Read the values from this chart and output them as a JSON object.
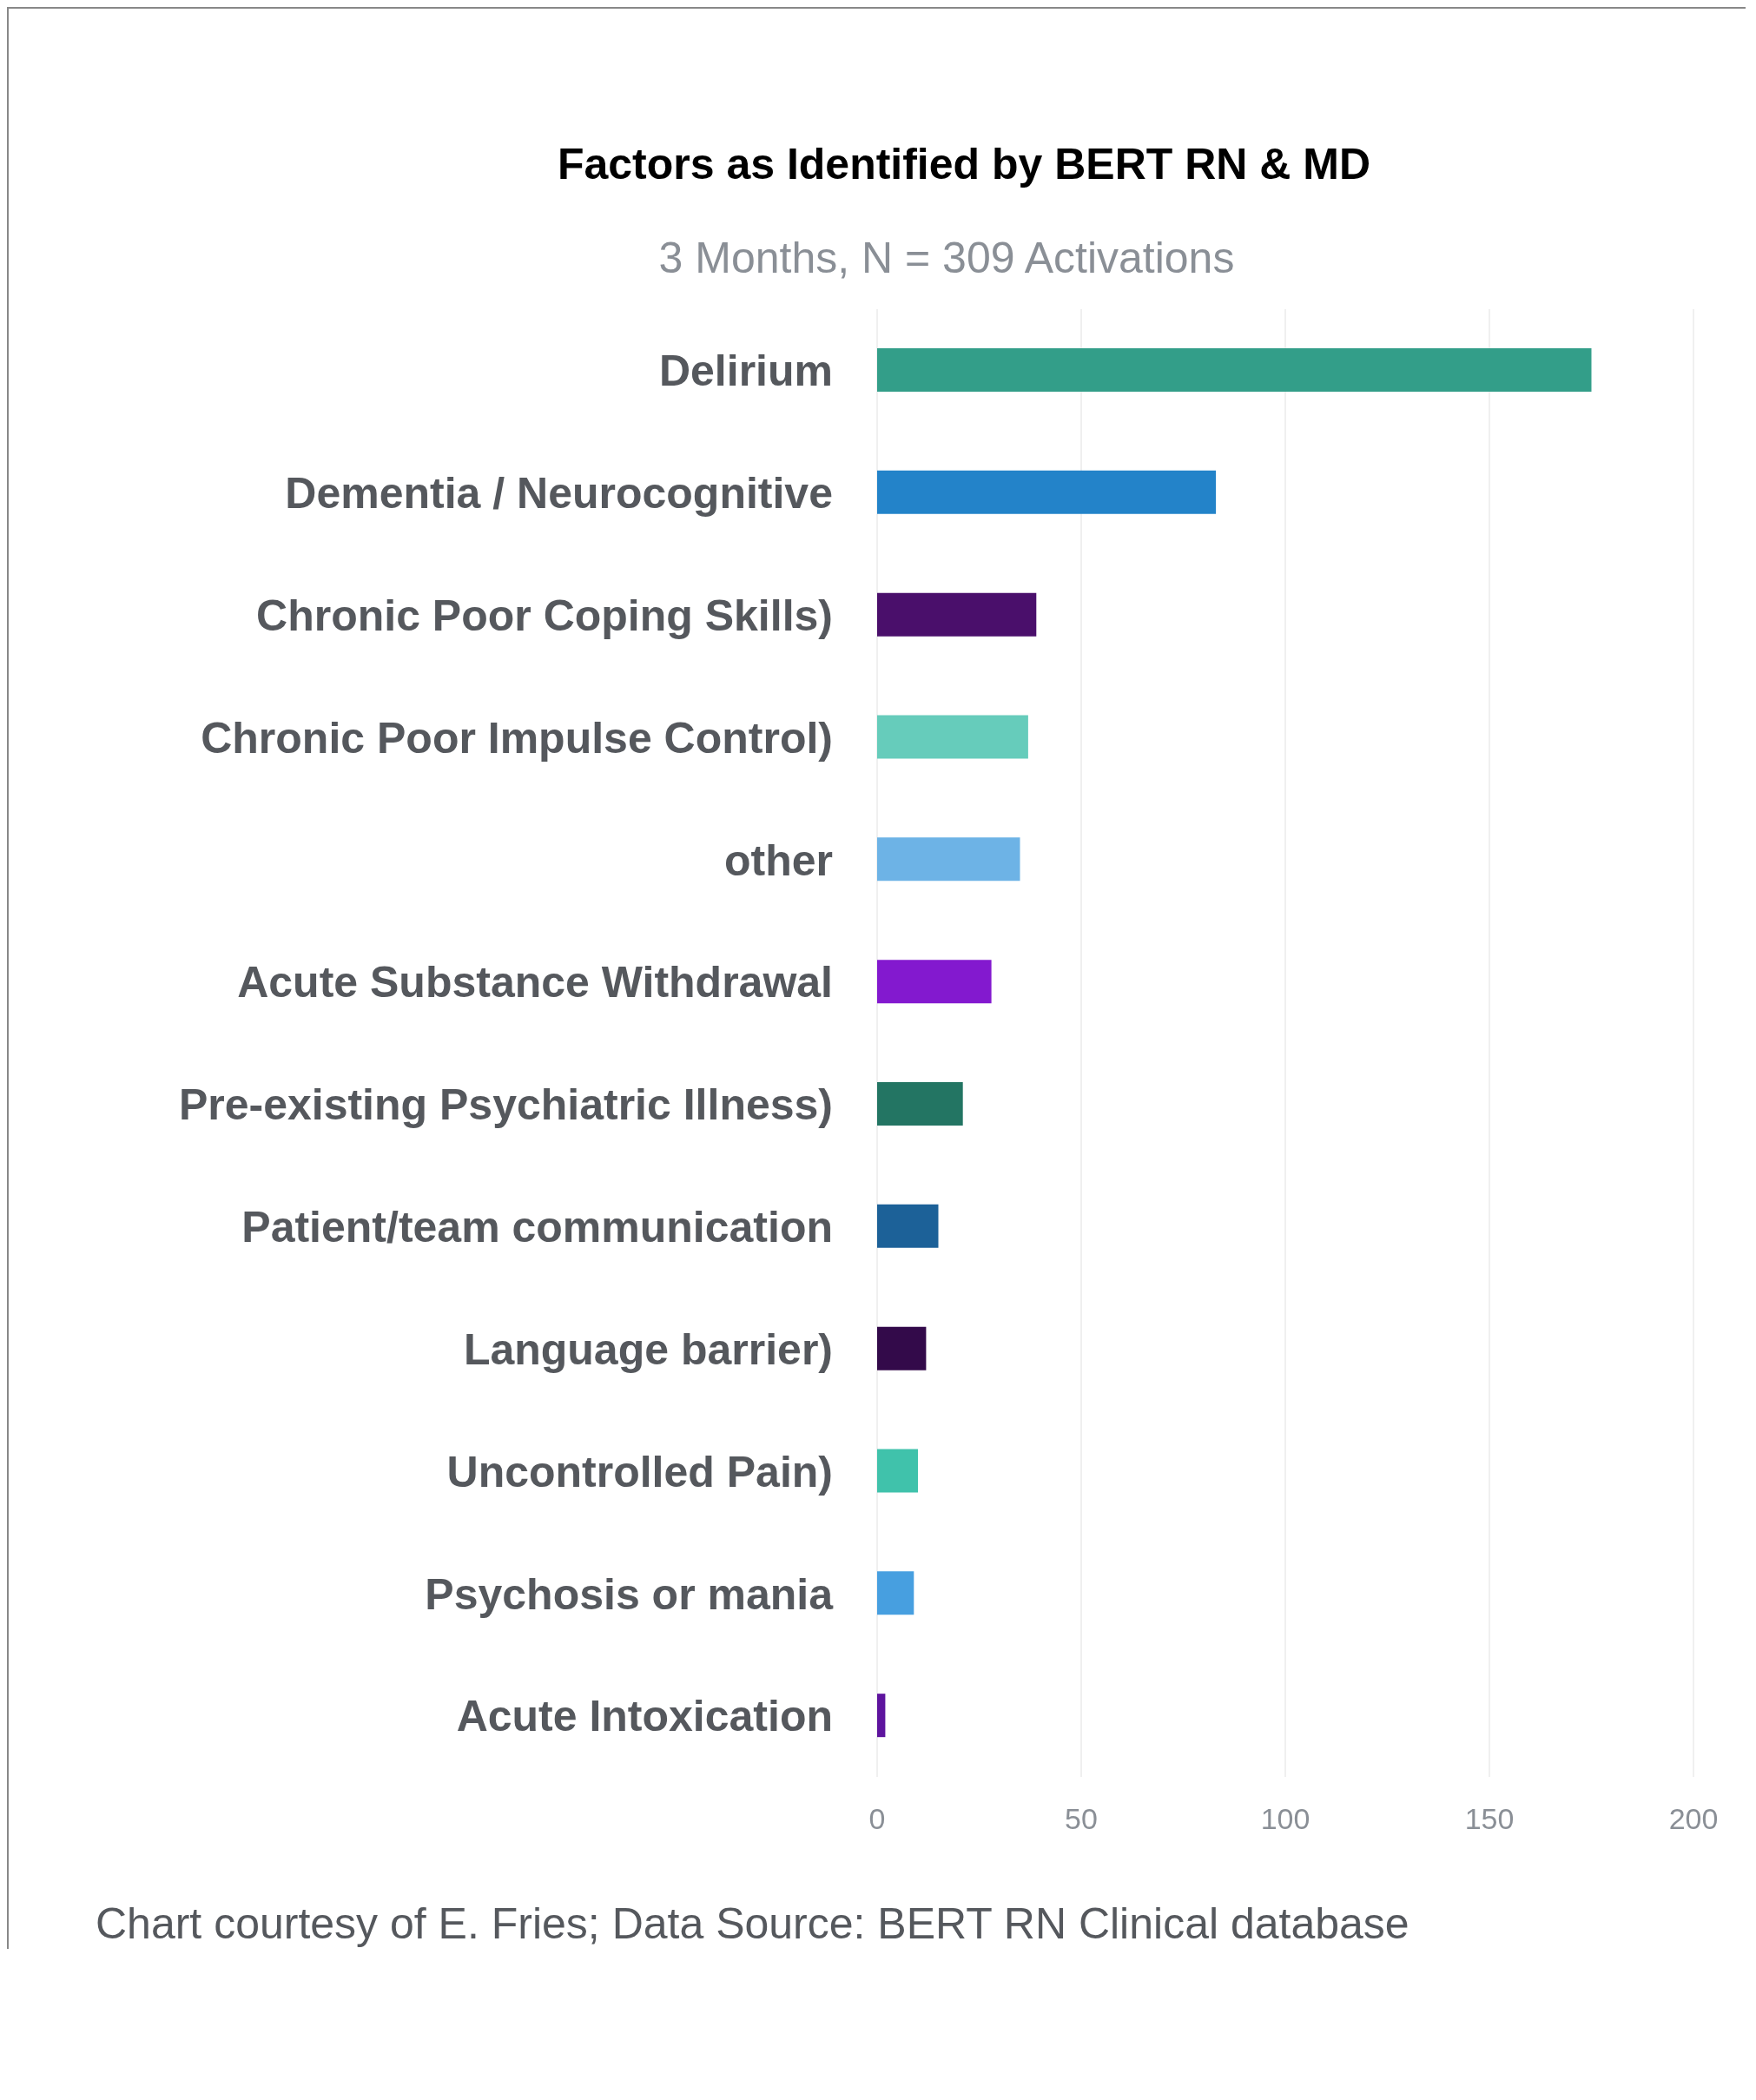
{
  "chart_data": {
    "type": "bar",
    "orientation": "horizontal",
    "title": "Factors as Identified by BERT RN & MD",
    "subtitle": "3 Months, N = 309 Activations",
    "categories": [
      "Delirium",
      "Dementia / Neurocognitive",
      "Chronic Poor Coping Skills)",
      "Chronic Poor Impulse Control)",
      "other",
      "Acute Substance Withdrawal",
      "Pre-existing Psychiatric Illness)",
      "Patient/team communication",
      "Language barrier)",
      "Uncontrolled Pain)",
      "Psychosis or mania",
      "Acute Intoxication"
    ],
    "values": [
      175,
      83,
      39,
      37,
      35,
      28,
      21,
      15,
      12,
      10,
      9,
      2
    ],
    "colors": [
      "#339e89",
      "#2383c9",
      "#4a0f6b",
      "#66ccbb",
      "#6db3e6",
      "#8319cf",
      "#237563",
      "#1c6198",
      "#330a4a",
      "#40c2ab",
      "#479fe0",
      "#5e149e"
    ],
    "xlim": [
      0,
      200
    ],
    "xticks": [
      0,
      50,
      100,
      150,
      200
    ],
    "grid": "x",
    "annotations": [
      "Chart courtesy of E. Fries; Data Source: BERT RN Clinical database"
    ]
  }
}
